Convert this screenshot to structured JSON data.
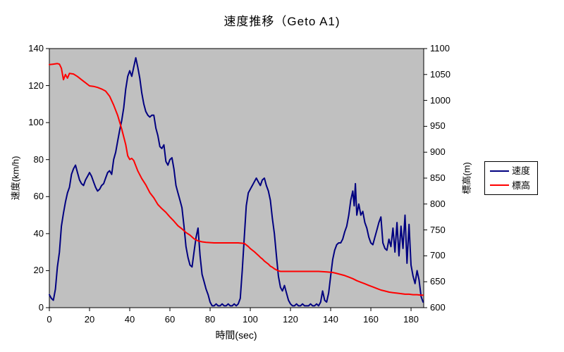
{
  "title": "速度推移（Geto A1)",
  "legend": {
    "items": [
      {
        "label": "速度",
        "color": "#000080"
      },
      {
        "label": "標高",
        "color": "#ff0000"
      }
    ]
  },
  "chart_data": {
    "type": "line",
    "title": "速度推移（Geto A1)",
    "xlabel": "時間(sec)",
    "ylabel_left": "速度(km/h)",
    "ylabel_right": "標高(m)",
    "plot_bg": "#c0c0c0",
    "axis_color": "#000000",
    "grid": "off",
    "legend_position": "right",
    "x_axis": {
      "min": 0,
      "max": 186.3,
      "ticks": [
        0,
        20,
        40,
        60,
        80,
        100,
        120,
        140,
        160,
        180
      ]
    },
    "y_left": {
      "min": 0,
      "max": 140,
      "ticks": [
        0,
        20,
        40,
        60,
        80,
        100,
        120,
        140
      ]
    },
    "y_right": {
      "min": 600,
      "max": 1100,
      "ticks": [
        600,
        650,
        700,
        750,
        800,
        850,
        900,
        950,
        1000,
        1050,
        1100
      ]
    },
    "series": [
      {
        "name": "速度",
        "axis": "left",
        "color": "#000080",
        "width": 2,
        "points": [
          [
            0,
            7
          ],
          [
            1,
            5
          ],
          [
            2,
            4
          ],
          [
            3,
            10
          ],
          [
            4,
            22
          ],
          [
            5,
            30
          ],
          [
            6,
            44
          ],
          [
            7,
            51
          ],
          [
            8,
            57
          ],
          [
            9,
            62
          ],
          [
            10,
            65
          ],
          [
            11,
            72
          ],
          [
            12,
            75
          ],
          [
            13,
            77
          ],
          [
            14,
            73
          ],
          [
            15,
            69
          ],
          [
            16,
            67
          ],
          [
            17,
            66
          ],
          [
            18,
            69
          ],
          [
            19,
            71
          ],
          [
            20,
            73
          ],
          [
            21,
            71
          ],
          [
            22,
            68
          ],
          [
            23,
            65
          ],
          [
            24,
            63
          ],
          [
            25,
            64
          ],
          [
            26,
            66
          ],
          [
            27,
            67
          ],
          [
            28,
            70
          ],
          [
            29,
            73
          ],
          [
            30,
            74
          ],
          [
            31,
            72
          ],
          [
            32,
            80
          ],
          [
            33,
            84
          ],
          [
            34,
            90
          ],
          [
            35,
            96
          ],
          [
            36,
            101
          ],
          [
            37,
            108
          ],
          [
            38,
            118
          ],
          [
            39,
            125
          ],
          [
            40,
            128
          ],
          [
            41,
            125
          ],
          [
            42,
            130
          ],
          [
            43,
            135
          ],
          [
            44,
            130
          ],
          [
            45,
            124
          ],
          [
            46,
            116
          ],
          [
            47,
            110
          ],
          [
            48,
            106
          ],
          [
            49,
            104
          ],
          [
            50,
            103
          ],
          [
            51,
            104
          ],
          [
            52,
            104
          ],
          [
            53,
            97
          ],
          [
            54,
            93
          ],
          [
            55,
            87
          ],
          [
            56,
            86
          ],
          [
            57,
            88
          ],
          [
            58,
            79
          ],
          [
            59,
            77
          ],
          [
            60,
            80
          ],
          [
            61,
            81
          ],
          [
            62,
            75
          ],
          [
            63,
            66
          ],
          [
            64,
            62
          ],
          [
            65,
            58
          ],
          [
            66,
            54
          ],
          [
            67,
            44
          ],
          [
            68,
            33
          ],
          [
            69,
            27
          ],
          [
            70,
            23
          ],
          [
            71,
            22
          ],
          [
            72,
            30
          ],
          [
            73,
            38
          ],
          [
            74,
            43
          ],
          [
            75,
            28
          ],
          [
            76,
            18
          ],
          [
            77,
            14
          ],
          [
            78,
            10
          ],
          [
            79,
            7
          ],
          [
            80,
            3
          ],
          [
            81,
            1
          ],
          [
            82,
            1
          ],
          [
            83,
            2
          ],
          [
            84,
            1
          ],
          [
            85,
            1
          ],
          [
            86,
            2
          ],
          [
            87,
            1
          ],
          [
            88,
            1
          ],
          [
            89,
            2
          ],
          [
            90,
            1
          ],
          [
            91,
            1
          ],
          [
            92,
            2
          ],
          [
            93,
            1
          ],
          [
            94,
            2
          ],
          [
            95,
            5
          ],
          [
            96,
            20
          ],
          [
            97,
            38
          ],
          [
            98,
            55
          ],
          [
            99,
            62
          ],
          [
            100,
            64
          ],
          [
            101,
            66
          ],
          [
            102,
            68
          ],
          [
            103,
            70
          ],
          [
            104,
            68
          ],
          [
            105,
            66
          ],
          [
            106,
            69
          ],
          [
            107,
            70
          ],
          [
            108,
            66
          ],
          [
            109,
            63
          ],
          [
            110,
            58
          ],
          [
            111,
            48
          ],
          [
            112,
            40
          ],
          [
            113,
            28
          ],
          [
            114,
            17
          ],
          [
            115,
            11
          ],
          [
            116,
            9
          ],
          [
            117,
            12
          ],
          [
            118,
            8
          ],
          [
            119,
            4
          ],
          [
            120,
            2
          ],
          [
            121,
            1
          ],
          [
            122,
            1
          ],
          [
            123,
            2
          ],
          [
            124,
            1
          ],
          [
            125,
            1
          ],
          [
            126,
            2
          ],
          [
            127,
            1
          ],
          [
            128,
            1
          ],
          [
            129,
            1
          ],
          [
            130,
            2
          ],
          [
            131,
            1
          ],
          [
            132,
            1
          ],
          [
            133,
            2
          ],
          [
            134,
            1
          ],
          [
            135,
            3
          ],
          [
            136,
            9
          ],
          [
            137,
            4
          ],
          [
            138,
            3
          ],
          [
            139,
            8
          ],
          [
            140,
            17
          ],
          [
            141,
            26
          ],
          [
            142,
            31
          ],
          [
            143,
            34
          ],
          [
            144,
            35
          ],
          [
            145,
            35
          ],
          [
            146,
            37
          ],
          [
            147,
            41
          ],
          [
            148,
            44
          ],
          [
            149,
            50
          ],
          [
            150,
            58
          ],
          [
            151,
            63
          ],
          [
            151.7,
            55
          ],
          [
            152.3,
            67
          ],
          [
            153,
            50
          ],
          [
            154,
            56
          ],
          [
            155,
            50
          ],
          [
            156,
            52
          ],
          [
            157,
            46
          ],
          [
            158,
            43
          ],
          [
            159,
            38
          ],
          [
            160,
            35
          ],
          [
            161,
            34
          ],
          [
            162,
            38
          ],
          [
            163,
            42
          ],
          [
            164,
            46
          ],
          [
            165,
            49
          ],
          [
            166,
            35
          ],
          [
            167,
            32
          ],
          [
            168,
            31
          ],
          [
            169,
            37
          ],
          [
            170,
            33
          ],
          [
            171,
            43
          ],
          [
            172,
            30
          ],
          [
            173,
            46
          ],
          [
            174,
            28
          ],
          [
            175,
            44
          ],
          [
            176,
            32
          ],
          [
            177,
            50
          ],
          [
            178,
            24
          ],
          [
            179,
            45
          ],
          [
            180,
            23
          ],
          [
            181,
            17
          ],
          [
            182,
            13
          ],
          [
            183,
            20
          ],
          [
            184,
            15
          ],
          [
            185,
            6
          ],
          [
            186,
            3
          ]
        ]
      },
      {
        "name": "標高",
        "axis": "right",
        "color": "#ff0000",
        "width": 2,
        "points": [
          [
            0,
            1069
          ],
          [
            2,
            1070
          ],
          [
            4,
            1071
          ],
          [
            5,
            1070
          ],
          [
            6,
            1062
          ],
          [
            7,
            1040
          ],
          [
            8,
            1050
          ],
          [
            9,
            1043
          ],
          [
            10,
            1052
          ],
          [
            12,
            1051
          ],
          [
            14,
            1046
          ],
          [
            16,
            1040
          ],
          [
            18,
            1034
          ],
          [
            20,
            1028
          ],
          [
            22,
            1027
          ],
          [
            24,
            1025
          ],
          [
            26,
            1022
          ],
          [
            28,
            1018
          ],
          [
            30,
            1008
          ],
          [
            32,
            991
          ],
          [
            34,
            971
          ],
          [
            36,
            945
          ],
          [
            38,
            915
          ],
          [
            39,
            893
          ],
          [
            40,
            886
          ],
          [
            41,
            888
          ],
          [
            42,
            884
          ],
          [
            44,
            864
          ],
          [
            46,
            849
          ],
          [
            48,
            837
          ],
          [
            50,
            822
          ],
          [
            52,
            812
          ],
          [
            54,
            799
          ],
          [
            56,
            791
          ],
          [
            58,
            784
          ],
          [
            60,
            775
          ],
          [
            62,
            767
          ],
          [
            64,
            758
          ],
          [
            66,
            752
          ],
          [
            68,
            745
          ],
          [
            70,
            740
          ],
          [
            72,
            733
          ],
          [
            74,
            729
          ],
          [
            76,
            727
          ],
          [
            78,
            726
          ],
          [
            82,
            725
          ],
          [
            86,
            725
          ],
          [
            90,
            725
          ],
          [
            94,
            725
          ],
          [
            97,
            724
          ],
          [
            99,
            718
          ],
          [
            100,
            714
          ],
          [
            102,
            708
          ],
          [
            104,
            701
          ],
          [
            105,
            697
          ],
          [
            106,
            694
          ],
          [
            107,
            690
          ],
          [
            108,
            687
          ],
          [
            109,
            684
          ],
          [
            110,
            680
          ],
          [
            111,
            678
          ],
          [
            112,
            675
          ],
          [
            113,
            673
          ],
          [
            114,
            671
          ],
          [
            115,
            670
          ],
          [
            118,
            670
          ],
          [
            122,
            670
          ],
          [
            126,
            670
          ],
          [
            130,
            670
          ],
          [
            134,
            670
          ],
          [
            138,
            669
          ],
          [
            141,
            668
          ],
          [
            143,
            666
          ],
          [
            145,
            664
          ],
          [
            147,
            662
          ],
          [
            149,
            659
          ],
          [
            151,
            656
          ],
          [
            153,
            652
          ],
          [
            155,
            649
          ],
          [
            157,
            646
          ],
          [
            159,
            643
          ],
          [
            161,
            640
          ],
          [
            163,
            637
          ],
          [
            165,
            634
          ],
          [
            167,
            632
          ],
          [
            169,
            630
          ],
          [
            171,
            629
          ],
          [
            173,
            628
          ],
          [
            175,
            627
          ],
          [
            177,
            626
          ],
          [
            179,
            626
          ],
          [
            181,
            625
          ],
          [
            183,
            625
          ],
          [
            185,
            624
          ],
          [
            186,
            624
          ]
        ]
      }
    ]
  }
}
